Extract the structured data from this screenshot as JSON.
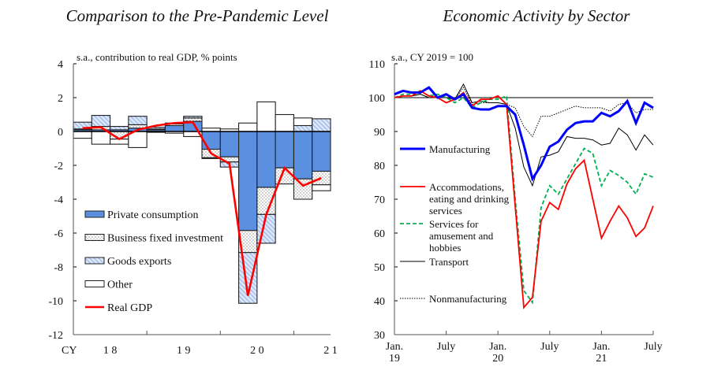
{
  "chart_data": [
    {
      "type": "bar",
      "stacked": true,
      "title": "Comparison to the Pre-Pandemic Level",
      "ylabel": "s.a., contribution  to real GDP, % points",
      "ylim": [
        -12,
        4
      ],
      "yticks": [
        4,
        2,
        0,
        -2,
        -4,
        -6,
        -8,
        -10,
        -12
      ],
      "x_axis_label_prefix": "CY",
      "year_labels": [
        "1 8",
        "1 9",
        "2 0",
        "2 1"
      ],
      "categories": [
        "2018Q1",
        "2018Q2",
        "2018Q3",
        "2018Q4",
        "2019Q1",
        "2019Q2",
        "2019Q3",
        "2019Q4",
        "2020Q1",
        "2020Q2",
        "2020Q3",
        "2020Q4",
        "2021Q1",
        "2021Q2"
      ],
      "legend_placement": "lower-left",
      "series": [
        {
          "name": "Private consumption",
          "color": "#5b8fdf",
          "values": [
            0.1,
            0.1,
            0.1,
            0.2,
            0.1,
            0.35,
            0.6,
            -1.05,
            -1.5,
            -5.85,
            -3.3,
            -2.15,
            -2.8,
            -2.35
          ]
        },
        {
          "name": "Business fixed investment",
          "color": "#ffffff",
          "pattern": "dots",
          "values": [
            0.05,
            0.2,
            -0.45,
            0.2,
            0.05,
            0.1,
            0.2,
            -0.5,
            -0.3,
            -1.3,
            -1.6,
            -0.95,
            -1.2,
            -0.8
          ]
        },
        {
          "name": "Goods exports",
          "color": "#a9c4ee",
          "pattern": "hatch",
          "values": [
            0.4,
            0.65,
            0.2,
            0.5,
            0.1,
            0.05,
            0.1,
            -0.05,
            -0.3,
            -3.0,
            -1.7,
            0,
            0.35,
            0.75
          ]
        },
        {
          "name": "Other",
          "color": "#ffffff",
          "values": [
            -0.4,
            -0.75,
            -0.3,
            -0.95,
            -0.05,
            -0.1,
            -0.3,
            0.2,
            0.15,
            0.5,
            1.75,
            1.0,
            0.45,
            -0.35
          ]
        },
        {
          "name": "Real GDP",
          "type": "line",
          "color": "#ff0000",
          "values": [
            0.2,
            0.25,
            -0.45,
            0.1,
            0.35,
            0.5,
            0.55,
            -1.3,
            -1.9,
            -9.7,
            -4.9,
            -2.15,
            -3.2,
            -2.75
          ]
        }
      ]
    },
    {
      "type": "line",
      "title": "Economic Activity by Sector",
      "ylabel": "s.a., CY 2019 = 100",
      "ylim": [
        30,
        110
      ],
      "yticks": [
        110,
        100,
        90,
        80,
        70,
        60,
        50,
        40,
        30
      ],
      "reference_line": 100,
      "x": [
        "2019-01",
        "2019-02",
        "2019-03",
        "2019-04",
        "2019-05",
        "2019-06",
        "2019-07",
        "2019-08",
        "2019-09",
        "2019-10",
        "2019-11",
        "2019-12",
        "2020-01",
        "2020-02",
        "2020-03",
        "2020-04",
        "2020-05",
        "2020-06",
        "2020-07",
        "2020-08",
        "2020-09",
        "2020-10",
        "2020-11",
        "2020-12",
        "2021-01",
        "2021-02",
        "2021-03",
        "2021-04",
        "2021-05",
        "2021-06",
        "2021-07"
      ],
      "xtick_labels": [
        [
          "Jan.",
          "19"
        ],
        [
          "July",
          ""
        ],
        [
          "Jan.",
          "20"
        ],
        [
          "July",
          ""
        ],
        [
          "Jan.",
          "21"
        ],
        [
          "July",
          ""
        ]
      ],
      "legend_placement": "left",
      "series": [
        {
          "name": "Manufacturing",
          "color": "#0000ff",
          "style": "thick",
          "values": [
            101,
            102,
            101.5,
            101.5,
            103,
            100,
            101,
            99.5,
            101,
            97,
            96.5,
            96.5,
            97.5,
            97.5,
            95,
            86,
            76,
            80,
            85.5,
            87,
            90.5,
            92.5,
            93,
            93,
            95.5,
            94.5,
            96,
            99,
            92.5,
            98.5,
            97
          ]
        },
        {
          "name": "Accommodations, eating and drinking services",
          "lines": [
            "Accommodations,",
            "eating and drinking",
            "services"
          ],
          "color": "#ff0000",
          "style": "solid",
          "values": [
            100,
            100.5,
            100.5,
            102,
            100.5,
            100,
            98.5,
            99.5,
            101.5,
            97.5,
            99.5,
            99.5,
            100.5,
            98,
            68,
            38,
            41,
            63.5,
            69,
            67,
            74.5,
            79,
            81.5,
            70,
            58.5,
            63.5,
            68,
            64.5,
            59,
            61.5,
            68
          ]
        },
        {
          "name": "Services for amusement and hobbies",
          "lines": [
            "Services for",
            "amusement and",
            "hobbies"
          ],
          "color": "#00b050",
          "style": "dashed",
          "values": [
            100,
            101,
            101,
            102,
            100.5,
            101,
            100,
            98.5,
            100,
            97,
            98.5,
            99.5,
            99.5,
            100.5,
            70,
            43,
            39.5,
            67.5,
            74,
            71.5,
            76,
            80.5,
            85,
            83.5,
            74,
            78.5,
            77,
            75,
            71.5,
            77.5,
            76.5
          ]
        },
        {
          "name": "Transport",
          "lines": [
            "Transport"
          ],
          "color": "#000000",
          "style": "thin",
          "values": [
            100,
            100.5,
            100.5,
            101,
            100,
            100,
            100,
            99.5,
            104,
            98.5,
            99,
            98.5,
            98.5,
            98,
            91,
            79.5,
            74,
            82.5,
            83,
            84,
            88.5,
            88,
            88,
            87.5,
            86,
            86.5,
            91,
            89,
            84.5,
            89,
            86
          ]
        },
        {
          "name": "Nonmanufacturing",
          "lines": [
            "Nonmanufacturing"
          ],
          "color": "#000000",
          "style": "dotted",
          "values": [
            100,
            100.5,
            100.5,
            101,
            100,
            100,
            100,
            99.5,
            103,
            98,
            98.5,
            98.5,
            98.5,
            98,
            97,
            91.5,
            88.5,
            94.5,
            94.5,
            95.5,
            96.5,
            97.5,
            97,
            97,
            97,
            96,
            98,
            98.5,
            95.5,
            96.5,
            96.5
          ]
        }
      ]
    }
  ]
}
